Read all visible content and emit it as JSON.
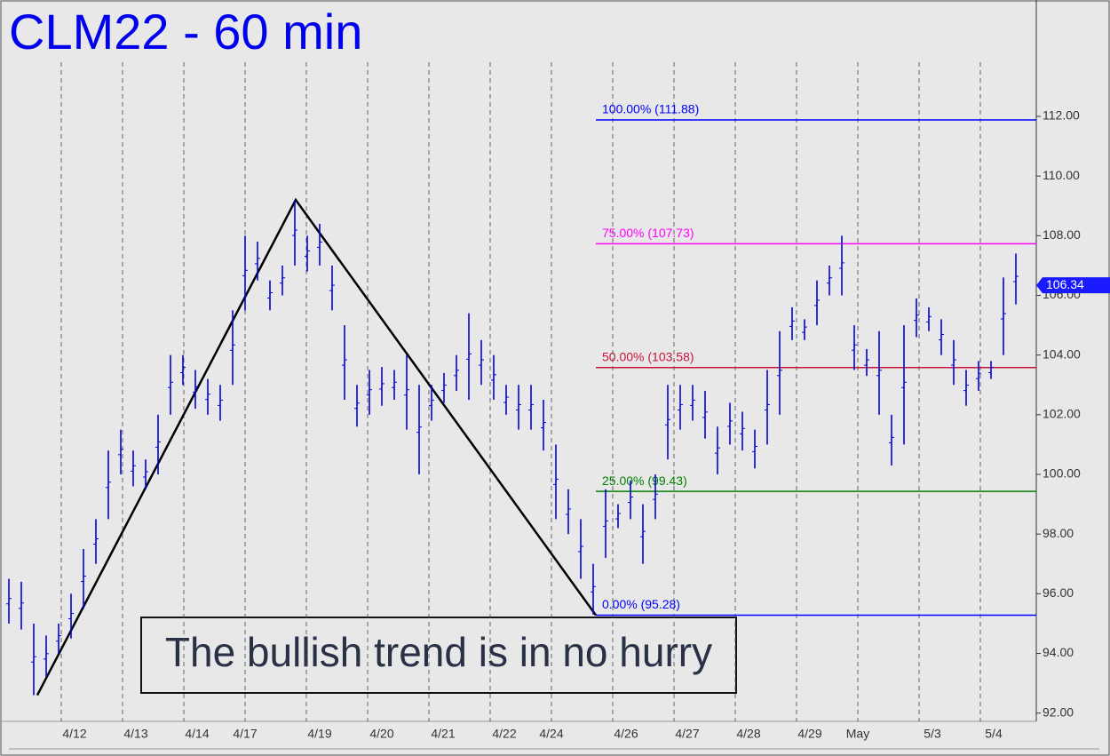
{
  "chart_data": {
    "type": "range-bar",
    "title": "CLM22 - 60 min",
    "annotation": "The bullish trend is in no hurry",
    "color": "#0000dd",
    "high": [
      96.5,
      96.4,
      95,
      94.6,
      95,
      96,
      97.5,
      98.5,
      100.8,
      101.5,
      100.8,
      100.5,
      102,
      104,
      104,
      103.5,
      103.2,
      103,
      105.5,
      108,
      107.8,
      106.5,
      107,
      109.2,
      108,
      108.4,
      107,
      105,
      103,
      103.5,
      103.6,
      103.5,
      104,
      103,
      103,
      103.4,
      104,
      105.4,
      104.5,
      104,
      103,
      103,
      103,
      102.5,
      101,
      99.5,
      98.5,
      97,
      99.5,
      99,
      99.8,
      99,
      100,
      103,
      103,
      103,
      102.8,
      101.6,
      102.4,
      102.1,
      101.5,
      103.5,
      104.8,
      105.6,
      105.2,
      106.5,
      107,
      108,
      105,
      104.2,
      104.8,
      102,
      105,
      105.9,
      105.6,
      105.2,
      104.5,
      103.5,
      103.8,
      103.8,
      106.6,
      107.4
    ],
    "low": [
      95,
      94.8,
      92.6,
      93.2,
      94,
      94.5,
      95.5,
      97,
      98.5,
      100,
      99.6,
      99.5,
      100,
      102,
      103,
      102.2,
      102,
      101.8,
      103,
      105.5,
      106.5,
      105.5,
      106,
      107,
      106.8,
      107,
      105.5,
      102.5,
      101.6,
      102,
      102.3,
      102.5,
      101.5,
      100,
      101.8,
      102.4,
      102.8,
      102.5,
      103,
      102.5,
      102,
      101.5,
      101.5,
      100.8,
      98.5,
      98,
      96.5,
      95.3,
      97.2,
      98.2,
      98.5,
      97,
      98.5,
      100.5,
      101.5,
      101.8,
      101.2,
      100,
      101,
      100.8,
      100.2,
      101,
      102,
      104.5,
      104.5,
      105,
      106,
      106,
      103.5,
      103.3,
      102,
      100.3,
      101,
      104.6,
      104.8,
      104,
      103,
      102.3,
      102.8,
      103.2,
      104,
      105.7
    ],
    "ylim": [
      91.2,
      115.2
    ],
    "yticks": [
      {
        "value": 92,
        "label": "92.00"
      },
      {
        "value": 94,
        "label": "94.00"
      },
      {
        "value": 96,
        "label": "96.00"
      },
      {
        "value": 98,
        "label": "98.00"
      },
      {
        "value": 100,
        "label": "100.00"
      },
      {
        "value": 102,
        "label": "102.00"
      },
      {
        "value": 104,
        "label": "104.00"
      },
      {
        "value": 106,
        "label": "106.00"
      },
      {
        "value": 108,
        "label": "108.00"
      },
      {
        "value": 110,
        "label": "110.00"
      },
      {
        "value": 112,
        "label": "112.00"
      }
    ],
    "date_labels": [
      "4/12",
      "4/13",
      "4/14",
      "4/17",
      "4/19",
      "4/20",
      "4/21",
      "4/22",
      "4/24",
      "4/26",
      "4/27",
      "4/28",
      "4/29",
      "May",
      "5/3",
      "5/4"
    ],
    "levels": [
      {
        "label": "100.00% (111.88)",
        "value": 111.88,
        "color": "#0000ff"
      },
      {
        "label": "75.00% (107.73)",
        "value": 107.73,
        "color": "#ff00ff"
      },
      {
        "label": "50.00% (103.58)",
        "value": 103.58,
        "color": "#c8143c"
      },
      {
        "label": "25.00% (99.43)",
        "value": 99.43,
        "color": "#008000"
      },
      {
        "label": "0.00% (95.28)",
        "value": 95.28,
        "color": "#0000ff"
      }
    ],
    "trendline_values": [
      92.6,
      109.2,
      95.28
    ],
    "last_price": {
      "value": 106.34,
      "label": "106.34"
    }
  }
}
